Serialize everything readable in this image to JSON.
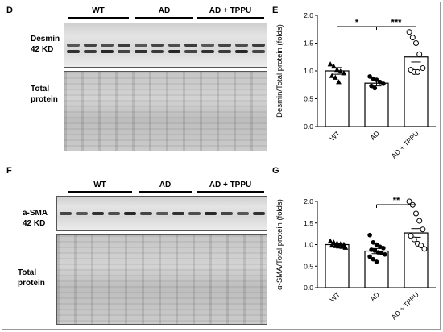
{
  "panels": {
    "D": "D",
    "E": "E",
    "F": "F",
    "G": "G"
  },
  "blots": {
    "top": {
      "groups": [
        "WT",
        "AD",
        "AD + TPPU"
      ],
      "band_label": [
        "Desmin",
        "42 KD"
      ],
      "total_label": [
        "Total",
        "protein"
      ]
    },
    "bottom": {
      "groups": [
        "WT",
        "AD",
        "AD + TPPU"
      ],
      "band_label": [
        "a-SMA",
        "42 KD"
      ],
      "total_label": [
        "Total",
        "protein"
      ]
    }
  },
  "colors": {
    "bar_fill": "#ffffff",
    "stroke": "#000000"
  },
  "chart_data": [
    {
      "panel": "E",
      "type": "bar",
      "ylabel": "Desmin/Total protein (folds)",
      "ylim": [
        0,
        2.0
      ],
      "yticks": [
        "0.0",
        "0.5",
        "1.0",
        "1.5",
        "2.0"
      ],
      "categories": [
        "WT",
        "AD",
        "AD + TPPU"
      ],
      "values": [
        1.0,
        0.78,
        1.25
      ],
      "sem": [
        0.06,
        0.05,
        0.09
      ],
      "markers": [
        "triangle",
        "circle",
        "circle-open"
      ],
      "points": [
        [
          1.12,
          1.08,
          1.02,
          0.99,
          0.96,
          0.91,
          0.88,
          0.8
        ],
        [
          0.9,
          0.86,
          0.84,
          0.8,
          0.77,
          0.73,
          0.69
        ],
        [
          1.7,
          1.6,
          1.5,
          1.3,
          1.05,
          1.02,
          0.98,
          0.98
        ]
      ],
      "significance": [
        {
          "between": [
            0,
            1
          ],
          "label": "*"
        },
        {
          "between": [
            1,
            2
          ],
          "label": "***"
        }
      ],
      "grid": false
    },
    {
      "panel": "G",
      "type": "bar",
      "ylabel": "α-SMA/Total protein (folds)",
      "ylim": [
        0,
        2.0
      ],
      "yticks": [
        "0.0",
        "0.5",
        "1.0",
        "1.5",
        "2.0"
      ],
      "categories": [
        "WT",
        "AD",
        "AD + TPPU"
      ],
      "values": [
        1.0,
        0.85,
        1.27
      ],
      "sem": [
        0.03,
        0.06,
        0.1
      ],
      "markers": [
        "triangle",
        "circle",
        "circle-open"
      ],
      "points": [
        [
          1.08,
          1.05,
          1.03,
          1.01,
          1.0,
          0.98,
          0.97,
          0.96,
          0.95,
          0.93
        ],
        [
          1.22,
          1.05,
          1.0,
          0.95,
          0.92,
          0.88,
          0.86,
          0.82,
          0.8,
          0.77,
          0.72,
          0.66,
          0.6
        ],
        [
          2.0,
          1.92,
          1.72,
          1.55,
          1.35,
          1.2,
          1.12,
          1.02,
          0.98,
          0.9
        ]
      ],
      "significance": [
        {
          "between": [
            1,
            2
          ],
          "label": "**"
        }
      ],
      "grid": false
    }
  ]
}
